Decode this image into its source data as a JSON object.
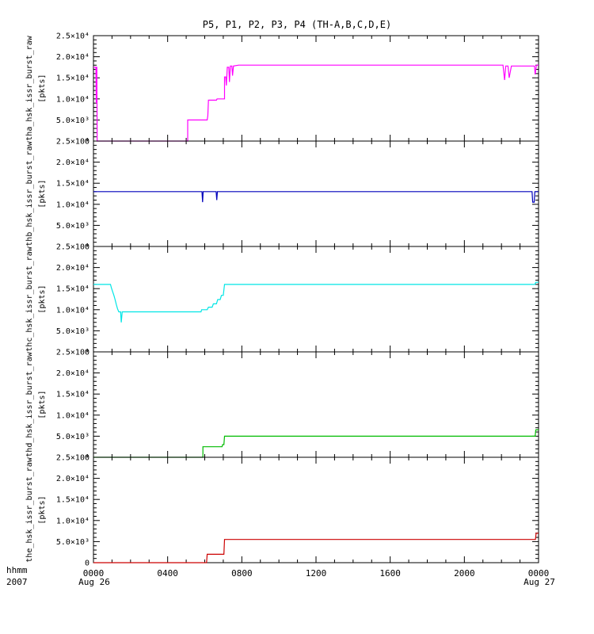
{
  "title": "P5, P1, P2, P3, P4 (TH-A,B,C,D,E)",
  "footer": {
    "time_format_label": "hhmm",
    "year_label": "2007",
    "start_date_label": "Aug 26",
    "end_date_label": "Aug 27"
  },
  "chart_data": {
    "type": "line",
    "title": "P5, P1, P2, P3, P4 (TH-A,B,C,D,E)",
    "x_axis": {
      "unit": "hhmm (minutes since 00:00)",
      "xlim_minutes": [
        0,
        1440
      ],
      "major_tick_minutes": [
        0,
        240,
        480,
        720,
        960,
        1200,
        1440
      ],
      "tick_labels": [
        "0000",
        "0400",
        "0800",
        "1200",
        "1600",
        "2000",
        "0000"
      ],
      "minor_tick_step_minutes": 60,
      "start_label": "Aug 26",
      "end_label": "Aug 27"
    },
    "y_axis": {
      "ylim": [
        0,
        25000
      ],
      "major_ticks": [
        0,
        5000,
        10000,
        15000,
        20000,
        25000
      ],
      "tick_labels": [
        "0",
        "5.0×10³",
        "1.0×10⁴",
        "1.5×10⁴",
        "2.0×10⁴",
        "2.5×10⁴"
      ],
      "minor_tick_step": 1000,
      "units": "[pkts]"
    },
    "panels": [
      {
        "name": "tha_hsk_issr_burst_raw",
        "ylabel_line1": "tha_hsk_issr_burst_raw",
        "ylabel_line2": "[pkts]",
        "color": "#ff00ff",
        "points_minutes_pkts": [
          [
            0,
            17500
          ],
          [
            8,
            17500
          ],
          [
            9,
            9000
          ],
          [
            10,
            17500
          ],
          [
            11,
            17500
          ],
          [
            12,
            0
          ],
          [
            305,
            0
          ],
          [
            305,
            5000
          ],
          [
            368,
            5000
          ],
          [
            370,
            6000
          ],
          [
            372,
            9700
          ],
          [
            398,
            9700
          ],
          [
            400,
            10000
          ],
          [
            424,
            10000
          ],
          [
            424,
            15200
          ],
          [
            428,
            15200
          ],
          [
            430,
            13200
          ],
          [
            433,
            17500
          ],
          [
            438,
            17500
          ],
          [
            440,
            14000
          ],
          [
            443,
            17800
          ],
          [
            448,
            17800
          ],
          [
            450,
            15500
          ],
          [
            453,
            17800
          ],
          [
            470,
            18000
          ],
          [
            1325,
            18000
          ],
          [
            1330,
            14500
          ],
          [
            1334,
            17800
          ],
          [
            1341,
            17800
          ],
          [
            1345,
            15000
          ],
          [
            1352,
            17800
          ],
          [
            1427,
            17800
          ],
          [
            1429,
            15800
          ],
          [
            1433,
            18000
          ],
          [
            1440,
            18000
          ]
        ]
      },
      {
        "name": "thb_hsk_issr_burst_raw",
        "ylabel_line1": "thb_hsk_issr_burst_raw",
        "ylabel_line2": "[pkts]",
        "color": "#0000bb",
        "points_minutes_pkts": [
          [
            0,
            13000
          ],
          [
            351,
            13000
          ],
          [
            353,
            10500
          ],
          [
            355,
            13000
          ],
          [
            397,
            13000
          ],
          [
            399,
            11000
          ],
          [
            401,
            13000
          ],
          [
            1419,
            13000
          ],
          [
            1421,
            10500
          ],
          [
            1426,
            10500
          ],
          [
            1428,
            13000
          ],
          [
            1440,
            13000
          ]
        ]
      },
      {
        "name": "thc_hsk_issr_burst_raw",
        "ylabel_line1": "thc_hsk_issr_burst_raw",
        "ylabel_line2": "[pkts]",
        "color": "#00e5e5",
        "points_minutes_pkts": [
          [
            0,
            16000
          ],
          [
            55,
            16000
          ],
          [
            58,
            15200
          ],
          [
            62,
            14300
          ],
          [
            66,
            13400
          ],
          [
            70,
            12400
          ],
          [
            74,
            11200
          ],
          [
            78,
            10200
          ],
          [
            82,
            9500
          ],
          [
            88,
            9500
          ],
          [
            90,
            7000
          ],
          [
            93,
            9500
          ],
          [
            348,
            9500
          ],
          [
            350,
            10000
          ],
          [
            368,
            10000
          ],
          [
            372,
            10600
          ],
          [
            384,
            10600
          ],
          [
            388,
            11400
          ],
          [
            398,
            11400
          ],
          [
            402,
            12400
          ],
          [
            410,
            12400
          ],
          [
            414,
            13400
          ],
          [
            420,
            13400
          ],
          [
            424,
            16000
          ],
          [
            1428,
            16000
          ],
          [
            1431,
            16500
          ],
          [
            1440,
            16500
          ]
        ]
      },
      {
        "name": "thd_hsk_issr_burst_raw",
        "ylabel_line1": "thd_hsk_issr_burst_raw",
        "ylabel_line2": "[pkts]",
        "color": "#00bb00",
        "points_minutes_pkts": [
          [
            0,
            0
          ],
          [
            354,
            0
          ],
          [
            354,
            2500
          ],
          [
            416,
            2500
          ],
          [
            418,
            3000
          ],
          [
            422,
            3000
          ],
          [
            424,
            5000
          ],
          [
            1429,
            5000
          ],
          [
            1431,
            6500
          ],
          [
            1440,
            6500
          ]
        ]
      },
      {
        "name": "the_hsk_issr_burst_raw",
        "ylabel_line1": "the_hsk_issr_burst_raw",
        "ylabel_line2": "[pkts]",
        "color": "#cc0000",
        "points_minutes_pkts": [
          [
            0,
            0
          ],
          [
            366,
            0
          ],
          [
            368,
            2000
          ],
          [
            422,
            2000
          ],
          [
            424,
            5500
          ],
          [
            1430,
            5500
          ],
          [
            1432,
            7000
          ],
          [
            1440,
            7000
          ]
        ]
      }
    ]
  }
}
